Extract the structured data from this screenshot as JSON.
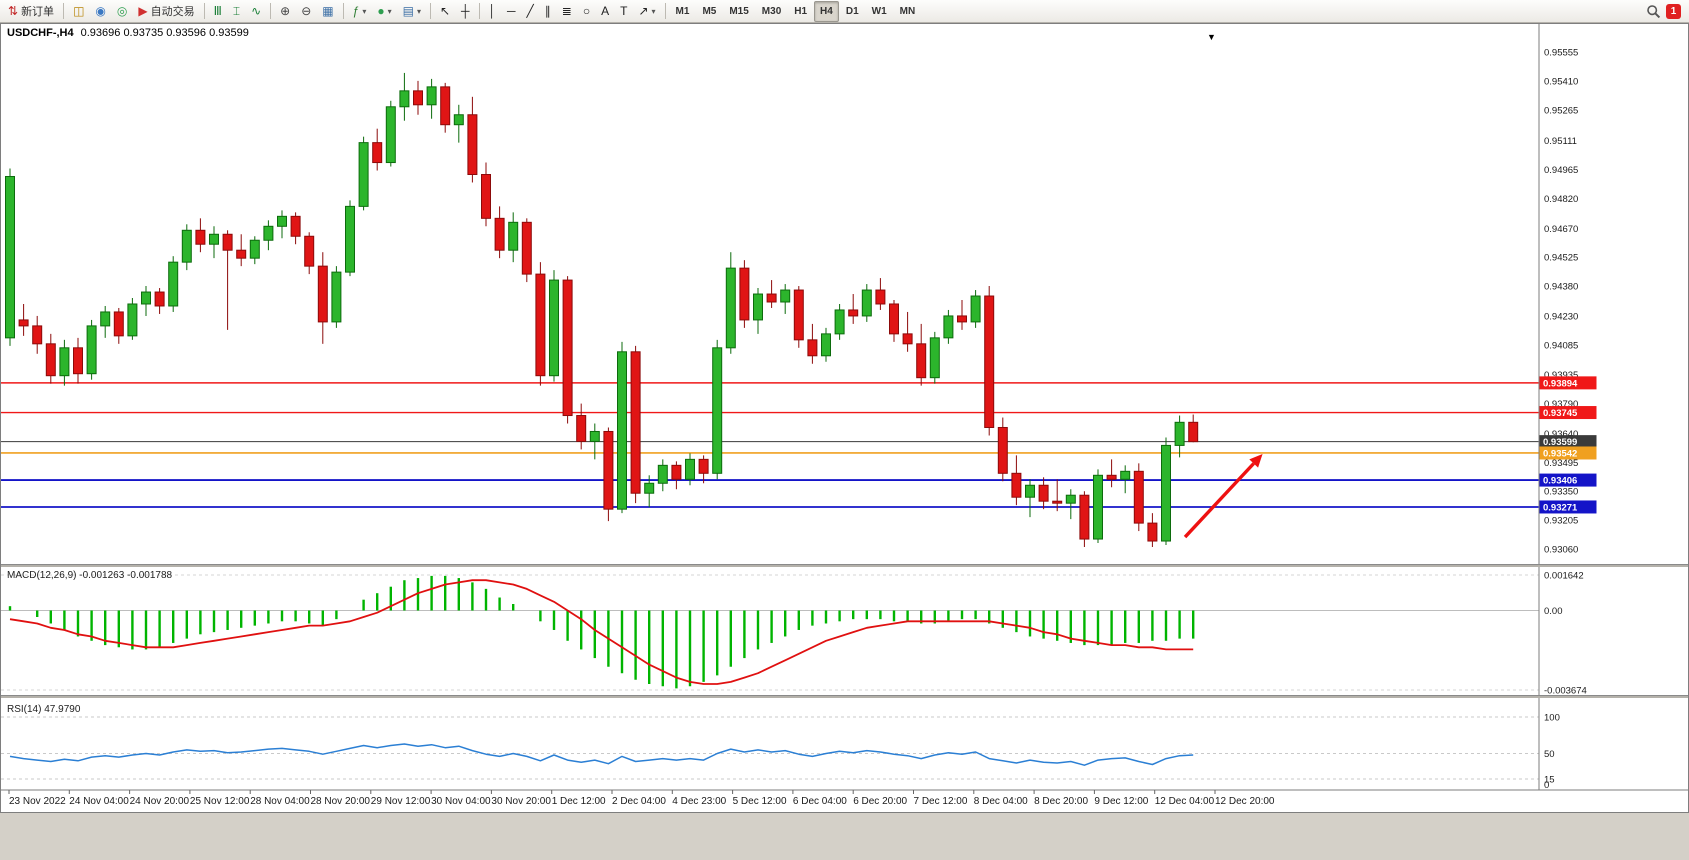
{
  "toolbar": {
    "badge": "1",
    "items": [
      {
        "t": "btn",
        "name": "new-order-button",
        "label": "新订单",
        "glyph": "⇅",
        "color": "#c22828"
      },
      {
        "t": "sep"
      },
      {
        "t": "btn",
        "name": "charts-button",
        "glyph": "◫",
        "color": "#b8860b"
      },
      {
        "t": "btn",
        "name": "profiles-button",
        "glyph": "◉",
        "color": "#3a78c3"
      },
      {
        "t": "btn",
        "name": "data-window-button",
        "glyph": "◎",
        "color": "#2e9e4f"
      },
      {
        "t": "btn",
        "name": "autotrading-button",
        "label": "自动交易",
        "glyph": "▶",
        "color": "#d03030"
      },
      {
        "t": "sep"
      },
      {
        "t": "btn",
        "name": "bar-chart-button",
        "glyph": "Ⅲ",
        "color": "#1a7f37"
      },
      {
        "t": "btn",
        "name": "candlestick-chart-button",
        "glyph": "⌶",
        "color": "#1a7f37"
      },
      {
        "t": "btn",
        "name": "line-chart-button",
        "glyph": "∿",
        "color": "#1a7f37"
      },
      {
        "t": "sep"
      },
      {
        "t": "btn",
        "name": "zoom-in-button",
        "glyph": "⊕",
        "color": "#444444"
      },
      {
        "t": "btn",
        "name": "zoom-out-button",
        "glyph": "⊖",
        "color": "#444444"
      },
      {
        "t": "btn",
        "name": "tile-windows-button",
        "glyph": "▦",
        "color": "#3a6ea5"
      },
      {
        "t": "sep"
      },
      {
        "t": "btn",
        "name": "indicators-button",
        "glyph": "ƒ",
        "color": "#2e7d32",
        "caret": true
      },
      {
        "t": "btn",
        "name": "periods-menu-button",
        "glyph": "●",
        "color": "#2e9e4f",
        "caret": true
      },
      {
        "t": "btn",
        "name": "templates-button",
        "glyph": "▤",
        "color": "#3a6ea5",
        "caret": true
      },
      {
        "t": "sep"
      },
      {
        "t": "btn",
        "name": "cursor-button",
        "glyph": "↖",
        "color": "#222222"
      },
      {
        "t": "btn",
        "name": "crosshair-button",
        "glyph": "┼",
        "color": "#222222"
      },
      {
        "t": "sep"
      },
      {
        "t": "btn",
        "name": "vertical-line-button",
        "glyph": "│",
        "color": "#222222"
      },
      {
        "t": "btn",
        "name": "horizontal-line-button",
        "glyph": "─",
        "color": "#222222"
      },
      {
        "t": "btn",
        "name": "trendline-button",
        "glyph": "╱",
        "color": "#222222"
      },
      {
        "t": "btn",
        "name": "channel-button",
        "glyph": "∥",
        "color": "#222222"
      },
      {
        "t": "btn",
        "name": "fibonacci-button",
        "glyph": "≣",
        "color": "#222222"
      },
      {
        "t": "btn",
        "name": "shapes-button",
        "glyph": "○",
        "color": "#222222"
      },
      {
        "t": "btn",
        "name": "text-button",
        "glyph": "A",
        "color": "#222222"
      },
      {
        "t": "btn",
        "name": "text-label-button",
        "glyph": "T",
        "color": "#222222"
      },
      {
        "t": "btn",
        "name": "arrows-button",
        "glyph": "↗",
        "color": "#222222",
        "caret": true
      },
      {
        "t": "sep"
      },
      {
        "t": "tf",
        "name": "timeframe-m1-button",
        "label": "M1"
      },
      {
        "t": "tf",
        "name": "timeframe-m5-button",
        "label": "M5"
      },
      {
        "t": "tf",
        "name": "timeframe-m15-button",
        "label": "M15"
      },
      {
        "t": "tf",
        "name": "timeframe-m30-button",
        "label": "M30"
      },
      {
        "t": "tf",
        "name": "timeframe-h1-button",
        "label": "H1"
      },
      {
        "t": "tf",
        "name": "timeframe-h4-button",
        "label": "H4",
        "active": true
      },
      {
        "t": "tf",
        "name": "timeframe-d1-button",
        "label": "D1"
      },
      {
        "t": "tf",
        "name": "timeframe-w1-button",
        "label": "W1"
      },
      {
        "t": "tf",
        "name": "timeframe-mn-button",
        "label": "MN"
      }
    ]
  },
  "chart": {
    "title": "USDCHF-,H4",
    "ohlc": "0.93696 0.93735 0.93596 0.93599",
    "corner_marker": "▼"
  },
  "chart_data": {
    "type": "candlestick",
    "symbol": "USDCHF",
    "timeframe": "H4",
    "current": {
      "open": 0.93696,
      "high": 0.93735,
      "low": 0.93596,
      "close": 0.93599
    },
    "price_ticks": [
      "0.95555",
      "0.95410",
      "0.95265",
      "0.95111",
      "0.94965",
      "0.94820",
      "0.94670",
      "0.94525",
      "0.94380",
      "0.94230",
      "0.94085",
      "0.93935",
      "0.93790",
      "0.93640",
      "0.93495",
      "0.93350",
      "0.93205",
      "0.93060"
    ],
    "x_labels": [
      "23 Nov 2022",
      "24 Nov 04:00",
      "24 Nov 20:00",
      "25 Nov 12:00",
      "28 Nov 04:00",
      "28 Nov 20:00",
      "29 Nov 12:00",
      "30 Nov 04:00",
      "30 Nov 20:00",
      "1 Dec 12:00",
      "2 Dec 04:00",
      "4 Dec 23:00",
      "5 Dec 12:00",
      "6 Dec 04:00",
      "6 Dec 20:00",
      "7 Dec 12:00",
      "8 Dec 04:00",
      "8 Dec 20:00",
      "9 Dec 12:00",
      "12 Dec 04:00",
      "12 Dec 20:00"
    ],
    "hlines": [
      {
        "price": 0.93894,
        "label": "0.93894",
        "color": "#f01818",
        "width": 1.4
      },
      {
        "price": 0.93745,
        "label": "0.93745",
        "color": "#f01818",
        "width": 1.4
      },
      {
        "price": 0.93599,
        "label": "0.93599",
        "color": "#3a3a3a",
        "width": 1
      },
      {
        "price": 0.93542,
        "label": "0.93542",
        "color": "#f0a020",
        "width": 1.6
      },
      {
        "price": 0.93406,
        "label": "0.93406",
        "color": "#1414c8",
        "width": 1.8
      },
      {
        "price": 0.93271,
        "label": "0.93271",
        "color": "#1414c8",
        "width": 1.8
      }
    ],
    "arrow": {
      "bar_from": 86.4,
      "price_from": 0.9312,
      "bar_to": 92.1,
      "price_to": 0.93537,
      "color": "#ee1111"
    },
    "candles": [
      [
        0.9412,
        0.9497,
        0.9408,
        0.9493
      ],
      [
        0.9421,
        0.9429,
        0.9413,
        0.9418
      ],
      [
        0.9418,
        0.9423,
        0.9404,
        0.9409
      ],
      [
        0.9409,
        0.9414,
        0.9389,
        0.9393
      ],
      [
        0.9393,
        0.9411,
        0.9388,
        0.9407
      ],
      [
        0.9407,
        0.9412,
        0.9389,
        0.9394
      ],
      [
        0.9394,
        0.9421,
        0.9391,
        0.9418
      ],
      [
        0.9418,
        0.9428,
        0.9412,
        0.9425
      ],
      [
        0.9425,
        0.9427,
        0.9409,
        0.9413
      ],
      [
        0.9413,
        0.9432,
        0.9411,
        0.9429
      ],
      [
        0.9429,
        0.9438,
        0.9423,
        0.9435
      ],
      [
        0.9435,
        0.9437,
        0.9424,
        0.9428
      ],
      [
        0.9428,
        0.9453,
        0.9425,
        0.945
      ],
      [
        0.945,
        0.9469,
        0.9446,
        0.9466
      ],
      [
        0.9466,
        0.9472,
        0.9455,
        0.9459
      ],
      [
        0.9459,
        0.9468,
        0.9452,
        0.9464
      ],
      [
        0.9464,
        0.9466,
        0.9416,
        0.9456
      ],
      [
        0.9456,
        0.9464,
        0.9448,
        0.9452
      ],
      [
        0.9452,
        0.9463,
        0.9449,
        0.9461
      ],
      [
        0.9461,
        0.9471,
        0.9456,
        0.9468
      ],
      [
        0.9468,
        0.9476,
        0.9462,
        0.9473
      ],
      [
        0.9473,
        0.9475,
        0.9459,
        0.9463
      ],
      [
        0.9463,
        0.9465,
        0.9444,
        0.9448
      ],
      [
        0.9448,
        0.9455,
        0.9409,
        0.942
      ],
      [
        0.942,
        0.9448,
        0.9417,
        0.9445
      ],
      [
        0.9445,
        0.9481,
        0.9443,
        0.9478
      ],
      [
        0.9478,
        0.9513,
        0.9476,
        0.951
      ],
      [
        0.951,
        0.9517,
        0.9496,
        0.95
      ],
      [
        0.95,
        0.9531,
        0.9498,
        0.9528
      ],
      [
        0.9528,
        0.9545,
        0.9521,
        0.9536
      ],
      [
        0.9536,
        0.9541,
        0.9524,
        0.9529
      ],
      [
        0.9529,
        0.9542,
        0.9522,
        0.9538
      ],
      [
        0.9538,
        0.954,
        0.9515,
        0.9519
      ],
      [
        0.9519,
        0.9529,
        0.951,
        0.9524
      ],
      [
        0.9524,
        0.9533,
        0.949,
        0.9494
      ],
      [
        0.9494,
        0.95,
        0.9468,
        0.9472
      ],
      [
        0.9472,
        0.9478,
        0.9452,
        0.9456
      ],
      [
        0.9456,
        0.9475,
        0.945,
        0.947
      ],
      [
        0.947,
        0.9472,
        0.944,
        0.9444
      ],
      [
        0.9444,
        0.945,
        0.9388,
        0.9393
      ],
      [
        0.9393,
        0.9446,
        0.939,
        0.9441
      ],
      [
        0.9441,
        0.9443,
        0.9369,
        0.9373
      ],
      [
        0.9373,
        0.9379,
        0.9356,
        0.936
      ],
      [
        0.936,
        0.9369,
        0.9351,
        0.9365
      ],
      [
        0.9365,
        0.9367,
        0.932,
        0.9326
      ],
      [
        0.9326,
        0.941,
        0.9324,
        0.9405
      ],
      [
        0.9405,
        0.9408,
        0.9329,
        0.9334
      ],
      [
        0.9334,
        0.9343,
        0.9327,
        0.9339
      ],
      [
        0.9339,
        0.9351,
        0.9335,
        0.9348
      ],
      [
        0.9348,
        0.935,
        0.9336,
        0.9341
      ],
      [
        0.9341,
        0.9354,
        0.9338,
        0.9351
      ],
      [
        0.9351,
        0.9353,
        0.9339,
        0.9344
      ],
      [
        0.9344,
        0.9411,
        0.9341,
        0.9407
      ],
      [
        0.9407,
        0.9455,
        0.9404,
        0.9447
      ],
      [
        0.9447,
        0.9451,
        0.9417,
        0.9421
      ],
      [
        0.9421,
        0.9437,
        0.9414,
        0.9434
      ],
      [
        0.9434,
        0.9441,
        0.9427,
        0.943
      ],
      [
        0.943,
        0.9439,
        0.9424,
        0.9436
      ],
      [
        0.9436,
        0.9438,
        0.9407,
        0.9411
      ],
      [
        0.9411,
        0.9419,
        0.9399,
        0.9403
      ],
      [
        0.9403,
        0.9417,
        0.94,
        0.9414
      ],
      [
        0.9414,
        0.9429,
        0.9411,
        0.9426
      ],
      [
        0.9426,
        0.9434,
        0.9419,
        0.9423
      ],
      [
        0.9423,
        0.9439,
        0.942,
        0.9436
      ],
      [
        0.9436,
        0.9442,
        0.9426,
        0.9429
      ],
      [
        0.9429,
        0.9431,
        0.941,
        0.9414
      ],
      [
        0.9414,
        0.9425,
        0.9405,
        0.9409
      ],
      [
        0.9409,
        0.9419,
        0.9388,
        0.9392
      ],
      [
        0.9392,
        0.9415,
        0.9389,
        0.9412
      ],
      [
        0.9412,
        0.9426,
        0.9409,
        0.9423
      ],
      [
        0.9423,
        0.9431,
        0.9416,
        0.942
      ],
      [
        0.942,
        0.9436,
        0.9417,
        0.9433
      ],
      [
        0.9433,
        0.9438,
        0.9363,
        0.9367
      ],
      [
        0.9367,
        0.9372,
        0.934,
        0.9344
      ],
      [
        0.9344,
        0.9353,
        0.9328,
        0.9332
      ],
      [
        0.9332,
        0.9341,
        0.9322,
        0.9338
      ],
      [
        0.9338,
        0.9342,
        0.9326,
        0.933
      ],
      [
        0.933,
        0.9341,
        0.9325,
        0.9329
      ],
      [
        0.9329,
        0.9336,
        0.9321,
        0.9333
      ],
      [
        0.9333,
        0.9335,
        0.9307,
        0.9311
      ],
      [
        0.9311,
        0.9346,
        0.9309,
        0.9343
      ],
      [
        0.9343,
        0.9351,
        0.9337,
        0.9341
      ],
      [
        0.9341,
        0.9348,
        0.9334,
        0.9345
      ],
      [
        0.9345,
        0.9349,
        0.9315,
        0.9319
      ],
      [
        0.9319,
        0.9324,
        0.9307,
        0.931
      ],
      [
        0.931,
        0.9362,
        0.9308,
        0.9358
      ],
      [
        0.9358,
        0.9373,
        0.9352,
        0.93696
      ],
      [
        0.93696,
        0.93735,
        0.93596,
        0.93599
      ]
    ],
    "indicators": {
      "macd": {
        "label": "MACD(12,26,9)",
        "value_main": "-0.001263",
        "value_signal": "-0.001788",
        "scale": [
          "0.001642",
          "0.00",
          "-0.003674"
        ],
        "unit": 0.0001,
        "histogram": [
          2,
          0,
          -3,
          -6,
          -9,
          -12,
          -14,
          -16,
          -17,
          -18,
          -18,
          -17,
          -15,
          -13,
          -11,
          -10,
          -9,
          -8,
          -7,
          -6,
          -5,
          -5,
          -6,
          -7,
          -4,
          0,
          5,
          8,
          11,
          14,
          15,
          16,
          16,
          15,
          13,
          10,
          6,
          3,
          0,
          -5,
          -9,
          -14,
          -18,
          -22,
          -26,
          -29,
          -32,
          -34,
          -35,
          -36,
          -35,
          -33,
          -30,
          -26,
          -22,
          -18,
          -15,
          -12,
          -9,
          -7,
          -6,
          -5,
          -4,
          -4,
          -4,
          -5,
          -5,
          -6,
          -6,
          -5,
          -4,
          -4,
          -6,
          -8,
          -10,
          -12,
          -13,
          -14,
          -15,
          -16,
          -16,
          -16,
          -15,
          -15,
          -14,
          -14,
          -13,
          -13
        ],
        "signal": [
          -4,
          -5,
          -6,
          -8,
          -9,
          -11,
          -12,
          -14,
          -15,
          -16,
          -17,
          -17,
          -17,
          -16,
          -15,
          -14,
          -13,
          -12,
          -11,
          -10,
          -9,
          -8,
          -7,
          -7,
          -6,
          -5,
          -3,
          -1,
          2,
          5,
          8,
          10,
          12,
          13,
          14,
          14,
          13,
          12,
          10,
          7,
          4,
          0,
          -4,
          -9,
          -13,
          -17,
          -21,
          -25,
          -28,
          -31,
          -33,
          -34,
          -34,
          -33,
          -31,
          -29,
          -26,
          -23,
          -20,
          -17,
          -14,
          -12,
          -10,
          -8,
          -7,
          -6,
          -5,
          -5,
          -5,
          -5,
          -5,
          -5,
          -5,
          -6,
          -7,
          -8,
          -10,
          -11,
          -13,
          -14,
          -15,
          -16,
          -16,
          -17,
          -17,
          -18,
          -18,
          -18
        ]
      },
      "rsi": {
        "label": "RSI(14)",
        "value": "47.9790",
        "scale": [
          "100",
          "50",
          "15",
          "0"
        ],
        "levels": [
          100,
          50,
          15
        ],
        "values": [
          46,
          43,
          41,
          39,
          42,
          40,
          45,
          47,
          45,
          48,
          50,
          48,
          52,
          55,
          53,
          54,
          51,
          52,
          54,
          56,
          57,
          55,
          53,
          49,
          53,
          57,
          61,
          58,
          61,
          63,
          60,
          62,
          58,
          60,
          54,
          49,
          46,
          50,
          46,
          40,
          48,
          41,
          38,
          41,
          36,
          46,
          39,
          41,
          43,
          41,
          43,
          41,
          50,
          56,
          52,
          55,
          52,
          54,
          49,
          46,
          50,
          53,
          51,
          54,
          52,
          49,
          47,
          43,
          48,
          51,
          49,
          52,
          43,
          40,
          37,
          41,
          38,
          37,
          39,
          34,
          41,
          43,
          44,
          39,
          35,
          43,
          47,
          48
        ]
      }
    }
  }
}
